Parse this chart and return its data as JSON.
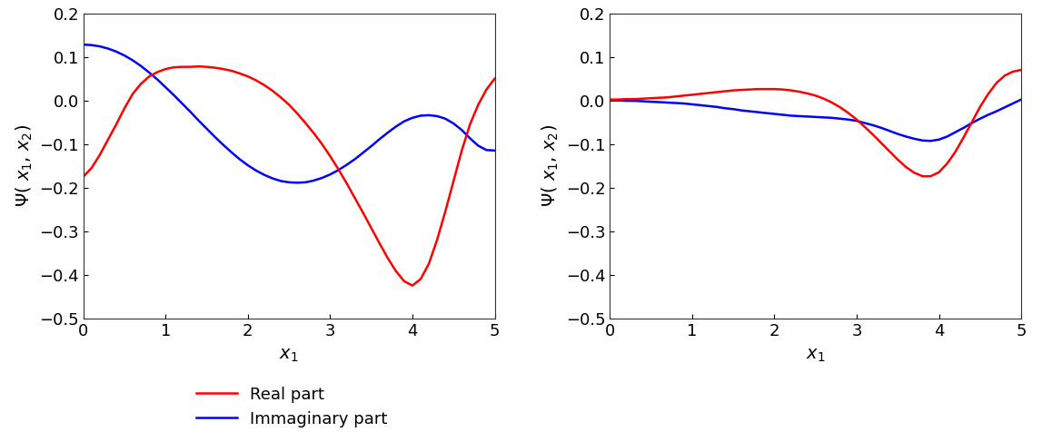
{
  "xlim": [
    0,
    5
  ],
  "ylim": [
    -0.5,
    0.2
  ],
  "yticks": [
    -0.5,
    -0.4,
    -0.3,
    -0.2,
    -0.1,
    0.0,
    0.1,
    0.2
  ],
  "xticks": [
    0,
    1,
    2,
    3,
    4,
    5
  ],
  "xlabel": "x₁",
  "ylabel": "Ψ( x₁, x₂)",
  "real_color": "#ff0000",
  "imag_color": "#0000ff",
  "legend_real": "Real part",
  "legend_imag": "Immaginary part",
  "linewidth": 1.8,
  "background_color": "#ffffff",
  "font_size": 13,
  "legend_font_size": 13,
  "left_real_x": [
    0.0,
    0.1,
    0.2,
    0.3,
    0.4,
    0.5,
    0.6,
    0.7,
    0.8,
    0.9,
    1.0,
    1.1,
    1.2,
    1.3,
    1.4,
    1.5,
    1.6,
    1.7,
    1.8,
    1.9,
    2.0,
    2.1,
    2.2,
    2.3,
    2.4,
    2.5,
    2.6,
    2.7,
    2.8,
    2.9,
    3.0,
    3.1,
    3.2,
    3.3,
    3.4,
    3.5,
    3.6,
    3.7,
    3.8,
    3.9,
    4.0,
    4.1,
    4.2,
    4.3,
    4.4,
    4.5,
    4.6,
    4.7,
    4.8,
    4.9,
    5.0
  ],
  "left_real_y": [
    -0.175,
    -0.155,
    -0.125,
    -0.09,
    -0.055,
    -0.018,
    0.015,
    0.038,
    0.055,
    0.065,
    0.072,
    0.076,
    0.077,
    0.077,
    0.078,
    0.077,
    0.075,
    0.072,
    0.068,
    0.062,
    0.055,
    0.046,
    0.035,
    0.022,
    0.007,
    -0.01,
    -0.03,
    -0.052,
    -0.075,
    -0.1,
    -0.128,
    -0.158,
    -0.19,
    -0.224,
    -0.258,
    -0.293,
    -0.328,
    -0.362,
    -0.392,
    -0.415,
    -0.425,
    -0.41,
    -0.375,
    -0.32,
    -0.255,
    -0.185,
    -0.115,
    -0.055,
    -0.01,
    0.025,
    0.05
  ],
  "left_imag_x": [
    0.0,
    0.1,
    0.2,
    0.3,
    0.4,
    0.5,
    0.6,
    0.7,
    0.8,
    0.9,
    1.0,
    1.1,
    1.2,
    1.3,
    1.4,
    1.5,
    1.6,
    1.7,
    1.8,
    1.9,
    2.0,
    2.1,
    2.2,
    2.3,
    2.4,
    2.5,
    2.6,
    2.7,
    2.8,
    2.9,
    3.0,
    3.1,
    3.2,
    3.3,
    3.4,
    3.5,
    3.6,
    3.7,
    3.8,
    3.9,
    4.0,
    4.1,
    4.2,
    4.3,
    4.4,
    4.5,
    4.6,
    4.7,
    4.8,
    4.9,
    5.0
  ],
  "left_imag_y": [
    0.128,
    0.127,
    0.124,
    0.119,
    0.112,
    0.103,
    0.092,
    0.079,
    0.064,
    0.048,
    0.03,
    0.012,
    -0.007,
    -0.026,
    -0.046,
    -0.065,
    -0.084,
    -0.102,
    -0.119,
    -0.135,
    -0.149,
    -0.161,
    -0.171,
    -0.179,
    -0.185,
    -0.188,
    -0.189,
    -0.188,
    -0.184,
    -0.178,
    -0.17,
    -0.16,
    -0.148,
    -0.135,
    -0.12,
    -0.105,
    -0.089,
    -0.074,
    -0.06,
    -0.048,
    -0.04,
    -0.035,
    -0.034,
    -0.036,
    -0.042,
    -0.053,
    -0.068,
    -0.087,
    -0.104,
    -0.114,
    -0.115
  ],
  "right_real_x": [
    0.0,
    0.1,
    0.2,
    0.3,
    0.4,
    0.5,
    0.6,
    0.7,
    0.8,
    0.9,
    1.0,
    1.1,
    1.2,
    1.3,
    1.4,
    1.5,
    1.6,
    1.7,
    1.8,
    1.9,
    2.0,
    2.1,
    2.2,
    2.3,
    2.4,
    2.5,
    2.6,
    2.7,
    2.8,
    2.9,
    3.0,
    3.1,
    3.2,
    3.3,
    3.4,
    3.5,
    3.6,
    3.7,
    3.8,
    3.9,
    4.0,
    4.1,
    4.2,
    4.3,
    4.4,
    4.5,
    4.6,
    4.7,
    4.8,
    4.9,
    5.0
  ],
  "right_real_y": [
    0.002,
    0.002,
    0.003,
    0.003,
    0.004,
    0.005,
    0.006,
    0.007,
    0.009,
    0.011,
    0.013,
    0.015,
    0.017,
    0.019,
    0.021,
    0.023,
    0.024,
    0.025,
    0.026,
    0.026,
    0.026,
    0.025,
    0.023,
    0.02,
    0.016,
    0.011,
    0.004,
    -0.005,
    -0.016,
    -0.029,
    -0.044,
    -0.061,
    -0.079,
    -0.098,
    -0.117,
    -0.136,
    -0.153,
    -0.166,
    -0.174,
    -0.174,
    -0.165,
    -0.145,
    -0.118,
    -0.085,
    -0.05,
    -0.015,
    0.015,
    0.04,
    0.057,
    0.066,
    0.07
  ],
  "right_imag_x": [
    0.0,
    0.1,
    0.2,
    0.3,
    0.4,
    0.5,
    0.6,
    0.7,
    0.8,
    0.9,
    1.0,
    1.1,
    1.2,
    1.3,
    1.4,
    1.5,
    1.6,
    1.7,
    1.8,
    1.9,
    2.0,
    2.1,
    2.2,
    2.3,
    2.4,
    2.5,
    2.6,
    2.7,
    2.8,
    2.9,
    3.0,
    3.1,
    3.2,
    3.3,
    3.4,
    3.5,
    3.6,
    3.7,
    3.8,
    3.9,
    4.0,
    4.1,
    4.2,
    4.3,
    4.4,
    4.5,
    4.6,
    4.7,
    4.8,
    4.9,
    5.0
  ],
  "right_imag_y": [
    0.0,
    0.0,
    -0.001,
    -0.001,
    -0.002,
    -0.003,
    -0.004,
    -0.005,
    -0.006,
    -0.007,
    -0.009,
    -0.011,
    -0.013,
    -0.015,
    -0.018,
    -0.02,
    -0.023,
    -0.025,
    -0.027,
    -0.029,
    -0.031,
    -0.033,
    -0.035,
    -0.036,
    -0.037,
    -0.038,
    -0.039,
    -0.04,
    -0.042,
    -0.044,
    -0.047,
    -0.052,
    -0.057,
    -0.063,
    -0.07,
    -0.077,
    -0.083,
    -0.088,
    -0.092,
    -0.093,
    -0.09,
    -0.083,
    -0.073,
    -0.063,
    -0.052,
    -0.042,
    -0.033,
    -0.025,
    -0.016,
    -0.007,
    0.002
  ]
}
